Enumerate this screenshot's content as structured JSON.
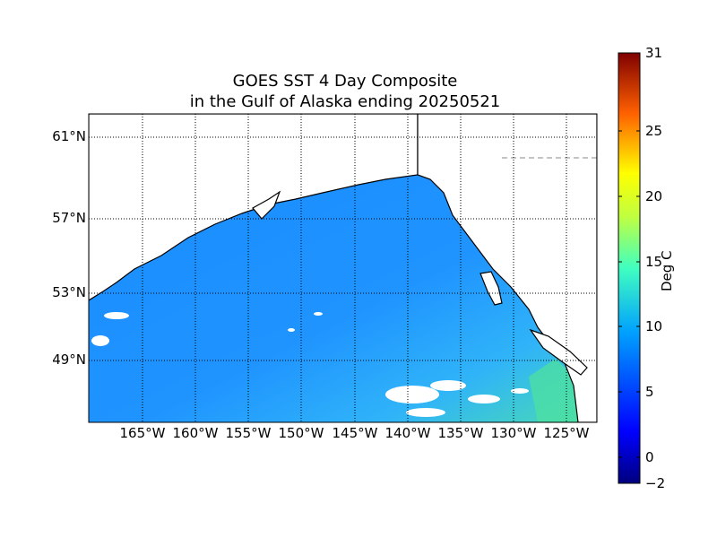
{
  "map": {
    "title_line1": "GOES SST 4 Day Composite",
    "title_line2": "in the Gulf of Alaska ending 20250521",
    "lat_labels": [
      "61°N",
      "57°N",
      "53°N",
      "49°N"
    ],
    "lon_labels": [
      "165°W",
      "160°W",
      "155°W",
      "150°W",
      "145°W",
      "140°W",
      "135°W",
      "130°W",
      "125°W"
    ],
    "grid": true,
    "land_color": "#ffffff",
    "coast_color": "#000000"
  },
  "colorbar": {
    "label": "Deg C",
    "min": -2,
    "max": 31,
    "ticks": [
      "31",
      "25",
      "20",
      "15",
      "10",
      "5",
      "0",
      "−2"
    ],
    "colormap": "jet"
  },
  "sst": {
    "offshore_color": "#1e90ff",
    "nearshore_color": "#30b0ff",
    "southeast_color": "#40d8c8",
    "coastal_warm_color": "#50e890"
  }
}
